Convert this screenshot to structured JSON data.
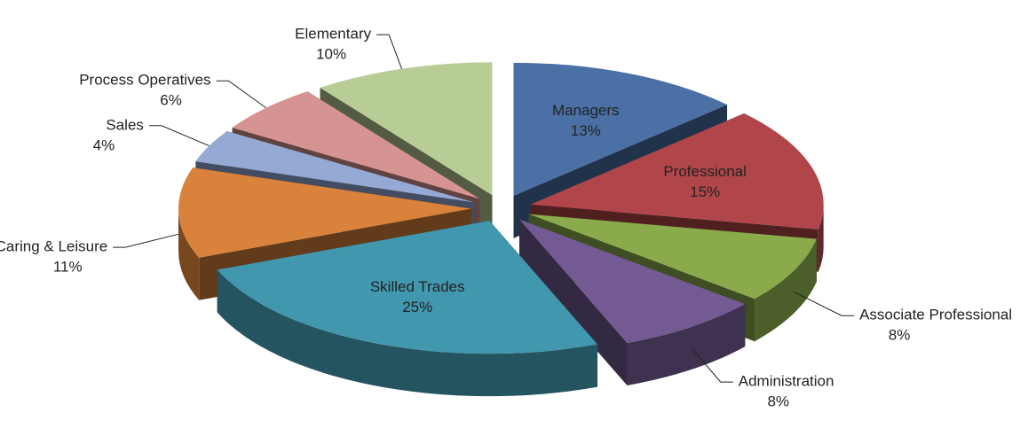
{
  "chart_data": {
    "type": "pie",
    "style": "3d-exploded",
    "categories": [
      "Managers",
      "Professional",
      "Associate Professional",
      "Administration",
      "Skilled Trades",
      "Caring & Leisure",
      "Sales",
      "Process Operatives",
      "Elementary"
    ],
    "values": [
      13,
      15,
      8,
      8,
      25,
      11,
      4,
      6,
      10
    ],
    "value_labels": [
      "13%",
      "15%",
      "8%",
      "8%",
      "25%",
      "11%",
      "4%",
      "6%",
      "10%"
    ],
    "colors": [
      "#4a70a6",
      "#b1464a",
      "#8aaa4c",
      "#735a92",
      "#4198ae",
      "#d9823b",
      "#95a9d5",
      "#d59491",
      "#b8cd95"
    ]
  }
}
